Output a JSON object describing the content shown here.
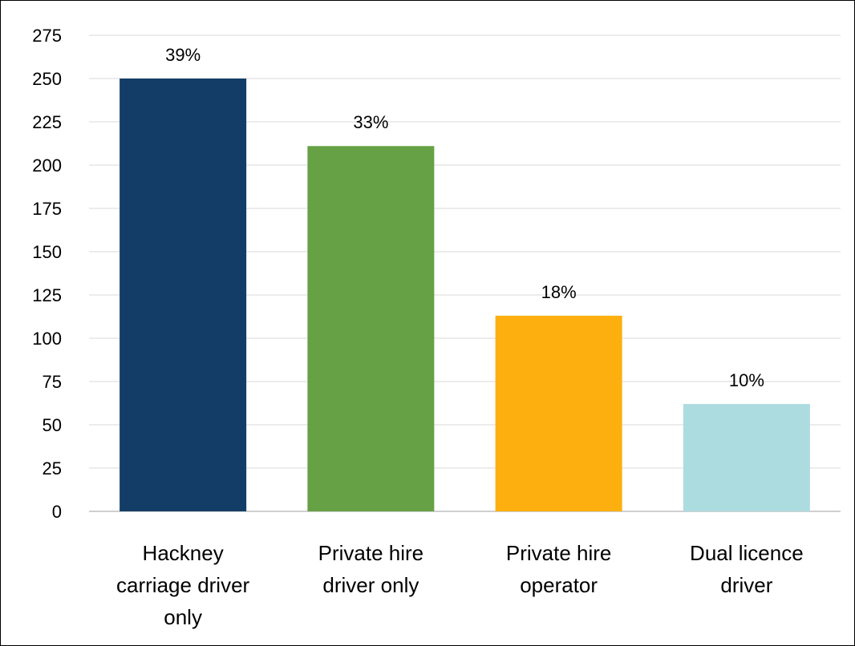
{
  "chart_data": {
    "type": "bar",
    "categories": [
      [
        "Hackney",
        "carriage driver",
        "only"
      ],
      [
        "Private hire",
        "driver only"
      ],
      [
        "Private hire",
        "operator"
      ],
      [
        "Dual licence",
        "driver"
      ]
    ],
    "values": [
      250,
      211,
      113,
      62
    ],
    "data_labels": [
      "39%",
      "33%",
      "18%",
      "10%"
    ],
    "colors": [
      "#133d66",
      "#67a146",
      "#fcaf0f",
      "#acdbe0"
    ],
    "ylim": [
      0,
      275
    ],
    "yticks": [
      0,
      25,
      50,
      75,
      100,
      125,
      150,
      175,
      200,
      225,
      250,
      275
    ],
    "grid": true,
    "title": "",
    "xlabel": "",
    "ylabel": ""
  }
}
